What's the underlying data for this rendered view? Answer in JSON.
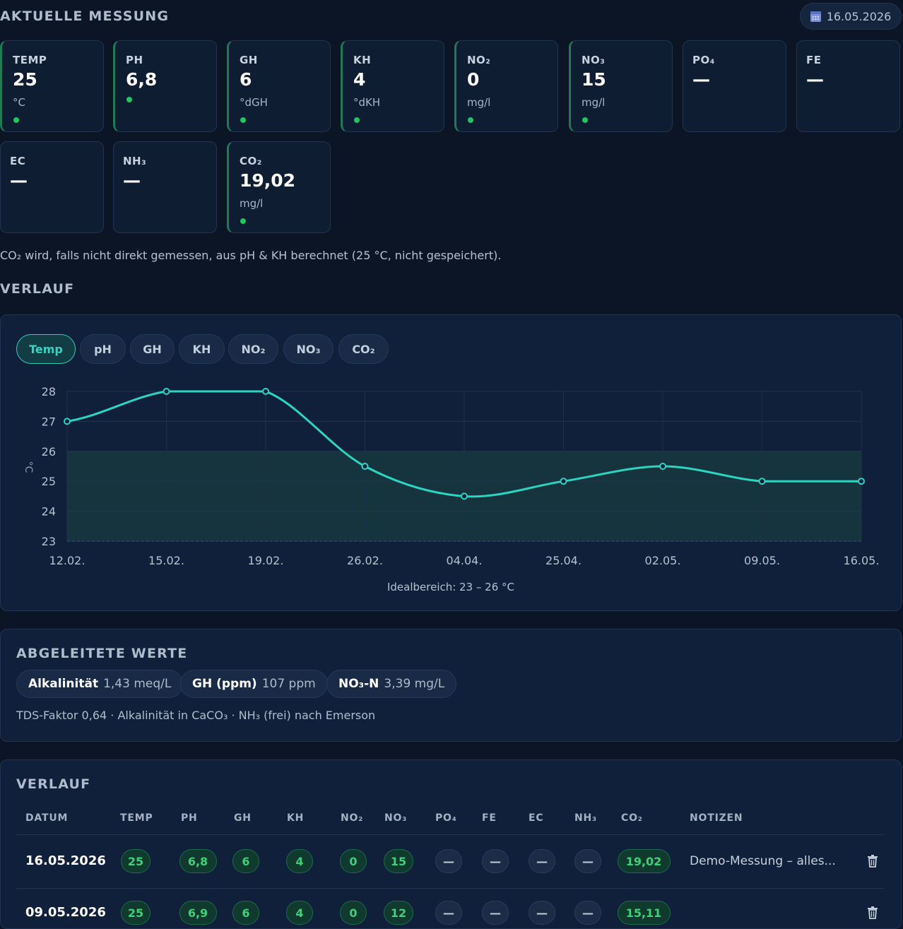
{
  "header": {
    "title": "AKTUELLE MESSUNG",
    "date": "16.05.2026",
    "date_icon": "calendar-icon"
  },
  "cards": [
    {
      "id": "temp",
      "label": "TEMP",
      "value": "25",
      "unit": "°C",
      "status": "ok"
    },
    {
      "id": "ph",
      "label": "PH",
      "value": "6,8",
      "unit": "",
      "status": "ok"
    },
    {
      "id": "gh",
      "label": "GH",
      "value": "6",
      "unit": "°dGH",
      "status": "ok"
    },
    {
      "id": "kh",
      "label": "KH",
      "value": "4",
      "unit": "°dKH",
      "status": "ok"
    },
    {
      "id": "no2",
      "label": "NO₂",
      "value": "0",
      "unit": "mg/l",
      "status": "ok"
    },
    {
      "id": "no3",
      "label": "NO₃",
      "value": "15",
      "unit": "mg/l",
      "status": "ok"
    },
    {
      "id": "po4",
      "label": "PO₄",
      "value": "—",
      "unit": "",
      "status": "none"
    },
    {
      "id": "fe",
      "label": "FE",
      "value": "—",
      "unit": "",
      "status": "none"
    },
    {
      "id": "ec",
      "label": "EC",
      "value": "—",
      "unit": "",
      "status": "none"
    },
    {
      "id": "nh3",
      "label": "NH₃",
      "value": "—",
      "unit": "",
      "status": "none"
    },
    {
      "id": "co2",
      "label": "CO₂",
      "value": "19,02",
      "unit": "mg/l",
      "status": "ok"
    }
  ],
  "co2_note": "CO₂ wird, falls nicht direkt gemessen, aus pH & KH berechnet (25 °C, nicht gespeichert).",
  "history": {
    "title": "VERLAUF",
    "tabs": [
      "Temp",
      "pH",
      "GH",
      "KH",
      "NO₂",
      "NO₃",
      "CO₂"
    ],
    "active_tab": "Temp",
    "ideal_caption": "Idealbereich: 23 – 26 °C"
  },
  "chart_data": {
    "type": "line",
    "x": [
      "12.02.",
      "15.02.",
      "19.02.",
      "26.02.",
      "04.04.",
      "25.04.",
      "02.05.",
      "09.05.",
      "16.05."
    ],
    "series": [
      {
        "values": [
          27,
          28,
          28,
          25.5,
          24.5,
          25,
          25.5,
          25,
          25
        ]
      }
    ],
    "ylabel": "°C",
    "ylim": [
      23,
      28
    ],
    "yticks": [
      "23",
      "24",
      "25",
      "26",
      "27",
      "28"
    ],
    "ideal_range": [
      23,
      26
    ],
    "grid": true,
    "line_color": "#2dd4bf",
    "band_color": "#17383f"
  },
  "derived": {
    "title": "ABGELEITETE WERTE",
    "items": [
      {
        "label": "Alkalinität",
        "value": "1,43 meq/L"
      },
      {
        "label": "GH (ppm)",
        "value": "107 ppm"
      },
      {
        "label": "NO₃-N",
        "value": "3,39 mg/L"
      }
    ],
    "footnote": "TDS-Faktor 0,64 · Alkalinität in CaCO₃ · NH₃ (frei) nach Emerson"
  },
  "table": {
    "title": "VERLAUF",
    "headers": [
      "DATUM",
      "TEMP",
      "PH",
      "GH",
      "KH",
      "NO₂",
      "NO₃",
      "PO₄",
      "FE",
      "EC",
      "NH₃",
      "CO₂",
      "NOTIZEN"
    ],
    "rows": [
      {
        "date": "16.05.2026",
        "cells": [
          "25",
          "6,8",
          "6",
          "4",
          "0",
          "15",
          "—",
          "—",
          "—",
          "—",
          "19,02"
        ],
        "note": "Demo-Messung – alles..."
      },
      {
        "date": "09.05.2026",
        "cells": [
          "25",
          "6,9",
          "6",
          "4",
          "0",
          "12",
          "—",
          "—",
          "—",
          "—",
          "15,11"
        ],
        "note": ""
      }
    ],
    "delete_icon": "trash-icon"
  }
}
